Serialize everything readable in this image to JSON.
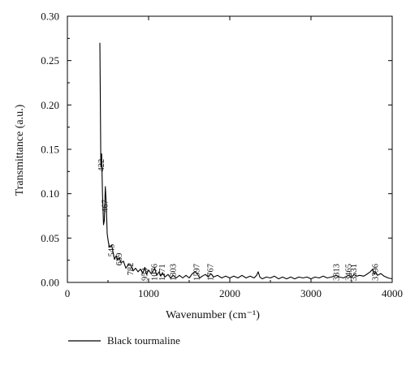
{
  "chart_data": {
    "type": "line",
    "xlabel": "Wavenumber (cm⁻¹)",
    "ylabel": "Transmittance (a.u.)",
    "xlim": [
      0,
      4000
    ],
    "ylim": [
      0,
      0.3
    ],
    "x_ticks": [
      0,
      1000,
      2000,
      3000,
      4000
    ],
    "y_ticks": [
      "0.00",
      "0.05",
      "0.10",
      "0.15",
      "0.20",
      "0.25",
      "0.30"
    ],
    "grid": false,
    "legend": {
      "position": "bottom-left-outside",
      "entries": [
        "Black tourmaline"
      ]
    },
    "series": [
      {
        "name": "Black tourmaline",
        "color": "#000000",
        "points": [
          [
            400,
            0.27
          ],
          [
            412,
            0.13
          ],
          [
            422,
            0.145
          ],
          [
            432,
            0.1
          ],
          [
            445,
            0.065
          ],
          [
            455,
            0.07
          ],
          [
            467,
            0.108
          ],
          [
            478,
            0.09
          ],
          [
            490,
            0.055
          ],
          [
            505,
            0.045
          ],
          [
            520,
            0.04
          ],
          [
            545,
            0.042
          ],
          [
            560,
            0.035
          ],
          [
            580,
            0.026
          ],
          [
            600,
            0.03
          ],
          [
            620,
            0.025
          ],
          [
            639,
            0.028
          ],
          [
            660,
            0.022
          ],
          [
            690,
            0.024
          ],
          [
            720,
            0.016
          ],
          [
            750,
            0.02
          ],
          [
            782,
            0.019
          ],
          [
            810,
            0.013
          ],
          [
            840,
            0.016
          ],
          [
            870,
            0.012
          ],
          [
            900,
            0.015
          ],
          [
            930,
            0.01
          ],
          [
            953,
            0.017
          ],
          [
            975,
            0.009
          ],
          [
            1000,
            0.014
          ],
          [
            1030,
            0.01
          ],
          [
            1050,
            0.012
          ],
          [
            1076,
            0.016
          ],
          [
            1100,
            0.008
          ],
          [
            1130,
            0.012
          ],
          [
            1150,
            0.007
          ],
          [
            1171,
            0.011
          ],
          [
            1200,
            0.006
          ],
          [
            1240,
            0.009
          ],
          [
            1270,
            0.005
          ],
          [
            1303,
            0.008
          ],
          [
            1340,
            0.005
          ],
          [
            1380,
            0.008
          ],
          [
            1420,
            0.005
          ],
          [
            1460,
            0.008
          ],
          [
            1500,
            0.005
          ],
          [
            1540,
            0.01
          ],
          [
            1570,
            0.012
          ],
          [
            1597,
            0.01
          ],
          [
            1630,
            0.005
          ],
          [
            1660,
            0.007
          ],
          [
            1700,
            0.009
          ],
          [
            1735,
            0.006
          ],
          [
            1767,
            0.01
          ],
          [
            1800,
            0.006
          ],
          [
            1850,
            0.008
          ],
          [
            1900,
            0.005
          ],
          [
            1950,
            0.007
          ],
          [
            2000,
            0.005
          ],
          [
            2050,
            0.007
          ],
          [
            2100,
            0.005
          ],
          [
            2150,
            0.008
          ],
          [
            2200,
            0.005
          ],
          [
            2250,
            0.007
          ],
          [
            2300,
            0.005
          ],
          [
            2330,
            0.008
          ],
          [
            2350,
            0.012
          ],
          [
            2370,
            0.006
          ],
          [
            2400,
            0.004
          ],
          [
            2450,
            0.006
          ],
          [
            2500,
            0.005
          ],
          [
            2550,
            0.007
          ],
          [
            2600,
            0.004
          ],
          [
            2650,
            0.006
          ],
          [
            2700,
            0.004
          ],
          [
            2750,
            0.006
          ],
          [
            2800,
            0.004
          ],
          [
            2850,
            0.006
          ],
          [
            2900,
            0.005
          ],
          [
            2950,
            0.006
          ],
          [
            3000,
            0.004
          ],
          [
            3050,
            0.006
          ],
          [
            3100,
            0.005
          ],
          [
            3150,
            0.007
          ],
          [
            3200,
            0.005
          ],
          [
            3250,
            0.006
          ],
          [
            3313,
            0.008
          ],
          [
            3350,
            0.006
          ],
          [
            3400,
            0.005
          ],
          [
            3440,
            0.007
          ],
          [
            3465,
            0.008
          ],
          [
            3500,
            0.006
          ],
          [
            3531,
            0.009
          ],
          [
            3560,
            0.007
          ],
          [
            3600,
            0.008
          ],
          [
            3650,
            0.007
          ],
          [
            3700,
            0.01
          ],
          [
            3730,
            0.012
          ],
          [
            3760,
            0.015
          ],
          [
            3780,
            0.009
          ],
          [
            3796,
            0.012
          ],
          [
            3820,
            0.008
          ],
          [
            3860,
            0.01
          ],
          [
            3900,
            0.007
          ],
          [
            3950,
            0.005
          ],
          [
            4000,
            0.004
          ]
        ]
      }
    ],
    "annotations": [
      {
        "label": "422",
        "x": 422,
        "y": 0.123
      },
      {
        "label": "467",
        "x": 467,
        "y": 0.077
      },
      {
        "label": "545",
        "x": 545,
        "y": 0.027
      },
      {
        "label": "639",
        "x": 639,
        "y": 0.017
      },
      {
        "label": "782",
        "x": 782,
        "y": 0.006
      },
      {
        "label": "953",
        "x": 953,
        "y": 0.0
      },
      {
        "label": "1076",
        "x": 1076,
        "y": 0.0
      },
      {
        "label": "1171",
        "x": 1171,
        "y": 0.0
      },
      {
        "label": "1303",
        "x": 1303,
        "y": 0.0
      },
      {
        "label": "1597",
        "x": 1597,
        "y": 0.0
      },
      {
        "label": "1767",
        "x": 1767,
        "y": 0.0
      },
      {
        "label": "3313",
        "x": 3313,
        "y": 0.0
      },
      {
        "label": "3465",
        "x": 3465,
        "y": 0.0
      },
      {
        "label": "3531",
        "x": 3531,
        "y": 0.0
      },
      {
        "label": "3796",
        "x": 3796,
        "y": 0.0
      }
    ]
  }
}
